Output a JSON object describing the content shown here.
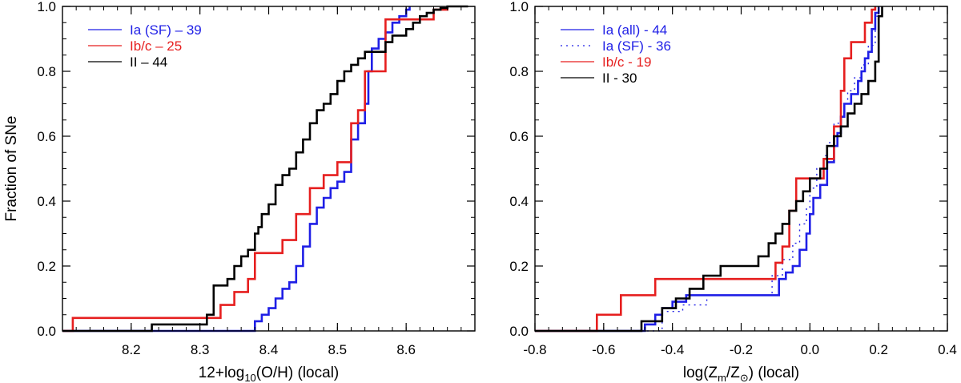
{
  "colors": {
    "blue": "#1f1fe6",
    "red": "#e61f1f",
    "black": "#000000"
  },
  "chart_data": [
    {
      "type": "line",
      "subtype": "cumulative-step",
      "ylabel": "Fraction of SNe",
      "xlabel_parts": [
        "12+log",
        "10",
        "(O/H) (local)"
      ],
      "xlim": [
        8.1,
        8.7
      ],
      "ylim": [
        0.0,
        1.0
      ],
      "xticks": [
        8.2,
        8.3,
        8.4,
        8.5,
        8.6
      ],
      "xtick_labels": [
        "8.2",
        "8.3",
        "8.4",
        "8.5",
        "8.6"
      ],
      "yticks": [
        0.0,
        0.2,
        0.4,
        0.6,
        0.8,
        1.0
      ],
      "ytick_labels": [
        "0.0",
        "0.2",
        "0.4",
        "0.6",
        "0.8",
        "1.0"
      ],
      "legend_position": "top-left",
      "series": [
        {
          "name": "Ia (SF) - 39",
          "label": "Ia (SF) – 39",
          "color": "blue",
          "dash": "solid",
          "x": [
            8.1,
            8.38,
            8.39,
            8.4,
            8.41,
            8.42,
            8.43,
            8.44,
            8.45,
            8.46,
            8.47,
            8.48,
            8.49,
            8.5,
            8.51,
            8.52,
            8.53,
            8.54,
            8.545,
            8.55,
            8.56,
            8.57,
            8.58,
            8.59,
            8.6,
            8.605
          ],
          "y": [
            0.0,
            0.03,
            0.05,
            0.07,
            0.1,
            0.13,
            0.15,
            0.2,
            0.26,
            0.33,
            0.38,
            0.41,
            0.44,
            0.46,
            0.49,
            0.59,
            0.64,
            0.7,
            0.8,
            0.87,
            0.9,
            0.92,
            0.95,
            0.97,
            0.99,
            1.0
          ]
        },
        {
          "name": "Ib/c - 25",
          "label": "Ib/c – 25",
          "color": "red",
          "dash": "solid",
          "x": [
            8.115,
            8.33,
            8.35,
            8.37,
            8.38,
            8.42,
            8.44,
            8.46,
            8.48,
            8.5,
            8.52,
            8.53,
            8.54,
            8.57,
            8.64,
            8.66
          ],
          "y": [
            0.04,
            0.08,
            0.12,
            0.16,
            0.24,
            0.28,
            0.36,
            0.44,
            0.48,
            0.52,
            0.64,
            0.68,
            0.8,
            0.96,
            0.99,
            1.0
          ]
        },
        {
          "name": "II - 44",
          "label": "II – 44",
          "color": "black",
          "dash": "solid",
          "x": [
            8.23,
            8.31,
            8.32,
            8.34,
            8.35,
            8.36,
            8.37,
            8.38,
            8.385,
            8.39,
            8.4,
            8.41,
            8.42,
            8.43,
            8.44,
            8.45,
            8.46,
            8.47,
            8.48,
            8.49,
            8.5,
            8.51,
            8.52,
            8.53,
            8.54,
            8.57,
            8.58,
            8.6,
            8.61,
            8.62,
            8.63,
            8.64,
            8.65,
            8.66,
            8.67,
            8.68,
            8.69
          ],
          "y": [
            0.02,
            0.05,
            0.14,
            0.16,
            0.2,
            0.23,
            0.25,
            0.3,
            0.32,
            0.36,
            0.39,
            0.45,
            0.48,
            0.5,
            0.55,
            0.59,
            0.64,
            0.68,
            0.7,
            0.73,
            0.77,
            0.8,
            0.82,
            0.84,
            0.86,
            0.89,
            0.91,
            0.93,
            0.95,
            0.97,
            0.98,
            0.99,
            0.995,
            1.0,
            1.0,
            1.0,
            1.0
          ]
        }
      ]
    },
    {
      "type": "line",
      "subtype": "cumulative-step",
      "ylabel": "",
      "xlabel_parts": [
        "log(Z",
        "m",
        "/Z",
        "⊙",
        ") (local)"
      ],
      "xlim": [
        -0.8,
        0.4
      ],
      "ylim": [
        0.0,
        1.0
      ],
      "xticks": [
        -0.8,
        -0.6,
        -0.4,
        -0.2,
        0.0,
        0.2,
        0.4
      ],
      "xtick_labels": [
        "-0.8",
        "-0.6",
        "-0.4",
        "-0.2",
        "0.0",
        "0.2",
        "0.4"
      ],
      "yticks": [
        0.0,
        0.2,
        0.4,
        0.6,
        0.8,
        1.0
      ],
      "ytick_labels": [
        "0.0",
        "0.2",
        "0.4",
        "0.6",
        "0.8",
        "1.0"
      ],
      "legend_position": "top-left",
      "series": [
        {
          "name": "Ia (all) - 44",
          "label": "Ia (all) - 44",
          "color": "blue",
          "dash": "solid",
          "x": [
            -0.5,
            -0.48,
            -0.45,
            -0.43,
            -0.4,
            -0.36,
            -0.3,
            -0.24,
            -0.15,
            -0.09,
            -0.07,
            -0.05,
            -0.03,
            -0.01,
            0.0,
            0.01,
            0.03,
            0.05,
            0.07,
            0.08,
            0.09,
            0.1,
            0.12,
            0.14,
            0.15,
            0.16,
            0.17,
            0.18,
            0.19,
            0.2
          ],
          "y": [
            0.0,
            0.02,
            0.05,
            0.07,
            0.09,
            0.11,
            0.11,
            0.11,
            0.11,
            0.16,
            0.18,
            0.2,
            0.25,
            0.3,
            0.36,
            0.41,
            0.45,
            0.52,
            0.57,
            0.61,
            0.66,
            0.7,
            0.73,
            0.77,
            0.8,
            0.84,
            0.86,
            0.93,
            0.98,
            1.0
          ]
        },
        {
          "name": "Ia (SF) - 36",
          "label": "Ia (SF) - 36",
          "color": "blue",
          "dash": "dotted",
          "x": [
            -0.48,
            -0.43,
            -0.37,
            -0.3,
            -0.2,
            -0.11,
            -0.08,
            -0.05,
            -0.03,
            -0.01,
            0.0,
            0.02,
            0.04,
            0.05,
            0.07,
            0.09,
            0.11,
            0.13,
            0.15,
            0.17,
            0.19,
            0.2
          ],
          "y": [
            0.0,
            0.06,
            0.08,
            0.11,
            0.11,
            0.17,
            0.22,
            0.27,
            0.33,
            0.38,
            0.44,
            0.5,
            0.54,
            0.58,
            0.64,
            0.7,
            0.74,
            0.78,
            0.82,
            0.88,
            0.97,
            1.0
          ]
        },
        {
          "name": "Ib/c - 19",
          "label": "Ib/c - 19",
          "color": "red",
          "dash": "solid",
          "x": [
            -0.68,
            -0.62,
            -0.55,
            -0.45,
            -0.26,
            -0.1,
            -0.08,
            -0.06,
            -0.04,
            0.0,
            0.04,
            0.07,
            0.09,
            0.1,
            0.12,
            0.16,
            0.18,
            0.19
          ],
          "y": [
            0.0,
            0.05,
            0.11,
            0.16,
            0.16,
            0.21,
            0.26,
            0.37,
            0.47,
            0.47,
            0.53,
            0.63,
            0.74,
            0.84,
            0.89,
            0.95,
            0.99,
            1.0
          ]
        },
        {
          "name": "II - 30",
          "label": "II - 30",
          "color": "black",
          "dash": "solid",
          "x": [
            -0.68,
            -0.49,
            -0.43,
            -0.39,
            -0.35,
            -0.31,
            -0.26,
            -0.15,
            -0.12,
            -0.1,
            -0.08,
            -0.06,
            -0.04,
            -0.02,
            0.0,
            0.03,
            0.05,
            0.07,
            0.09,
            0.11,
            0.13,
            0.15,
            0.17,
            0.19,
            0.2,
            0.21
          ],
          "y": [
            0.0,
            0.03,
            0.07,
            0.1,
            0.13,
            0.17,
            0.2,
            0.23,
            0.27,
            0.3,
            0.33,
            0.37,
            0.4,
            0.43,
            0.47,
            0.5,
            0.57,
            0.6,
            0.63,
            0.67,
            0.7,
            0.73,
            0.77,
            0.83,
            0.97,
            1.0
          ]
        }
      ]
    }
  ]
}
